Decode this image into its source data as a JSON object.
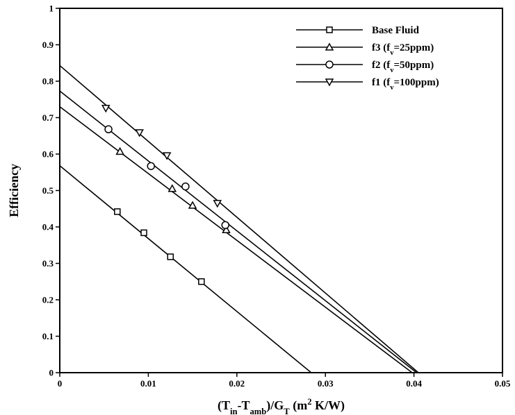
{
  "chart_data": {
    "type": "scatter",
    "title": "",
    "xlabel": {
      "parts": [
        {
          "t": "(T",
          "s": ""
        },
        {
          "t": "in",
          "s": "sub"
        },
        {
          "t": "-T",
          "s": ""
        },
        {
          "t": "amb",
          "s": "sub"
        },
        {
          "t": ")/G",
          "s": ""
        },
        {
          "t": "T",
          "s": "sub"
        },
        {
          "t": " (m",
          "s": ""
        },
        {
          "t": "2",
          "s": "sup"
        },
        {
          "t": " K/W)",
          "s": ""
        }
      ]
    },
    "ylabel": "Efficiency",
    "xlim": [
      0,
      0.05
    ],
    "ylim": [
      0,
      1
    ],
    "x_ticks": [
      0,
      0.01,
      0.02,
      0.03,
      0.04,
      0.05
    ],
    "x_tick_labels": [
      "0",
      "0.01",
      "0.02",
      "0.03",
      "0.04",
      "0.05"
    ],
    "y_ticks": [
      0,
      0.1,
      0.2,
      0.3,
      0.4,
      0.5,
      0.6,
      0.7,
      0.8,
      0.9,
      1
    ],
    "y_tick_labels": [
      "0",
      "0.1",
      "0.2",
      "0.3",
      "0.4",
      "0.5",
      "0.6",
      "0.7",
      "0.8",
      "0.9",
      "1"
    ],
    "grid": false,
    "legend_position": "top-right",
    "series": [
      {
        "name": "Base Fluid",
        "legend": [
          {
            "t": "Base Fluid",
            "s": ""
          }
        ],
        "marker": "square",
        "points": [
          [
            0.0065,
            0.442
          ],
          [
            0.0095,
            0.384
          ],
          [
            0.0125,
            0.318
          ],
          [
            0.016,
            0.25
          ]
        ],
        "fit_line": [
          [
            0,
            0.568
          ],
          [
            0.0284,
            0
          ]
        ]
      },
      {
        "name": "f3 (fv=25ppm)",
        "legend": [
          {
            "t": "f3 (f",
            "s": ""
          },
          {
            "t": "v",
            "s": "sub"
          },
          {
            "t": "=25ppm)",
            "s": ""
          }
        ],
        "marker": "triangle-up",
        "points": [
          [
            0.0068,
            0.607
          ],
          [
            0.0127,
            0.505
          ],
          [
            0.015,
            0.459
          ],
          [
            0.0188,
            0.392
          ]
        ],
        "fit_line": [
          [
            0,
            0.73
          ],
          [
            0.0398,
            0
          ]
        ]
      },
      {
        "name": "f2 (fv=50ppm)",
        "legend": [
          {
            "t": "f2 (f",
            "s": ""
          },
          {
            "t": "v",
            "s": "sub"
          },
          {
            "t": "=50ppm)",
            "s": ""
          }
        ],
        "marker": "circle",
        "points": [
          [
            0.0055,
            0.668
          ],
          [
            0.0103,
            0.567
          ],
          [
            0.0142,
            0.511
          ],
          [
            0.0187,
            0.405
          ]
        ],
        "fit_line": [
          [
            0,
            0.773
          ],
          [
            0.0403,
            0
          ]
        ]
      },
      {
        "name": "f1 (fv=100ppm)",
        "legend": [
          {
            "t": "f1 (f",
            "s": ""
          },
          {
            "t": "v",
            "s": "sub"
          },
          {
            "t": "=100ppm)",
            "s": ""
          }
        ],
        "marker": "triangle-down",
        "points": [
          [
            0.0052,
            0.726
          ],
          [
            0.009,
            0.659
          ],
          [
            0.0121,
            0.596
          ],
          [
            0.0178,
            0.465
          ]
        ],
        "fit_line": [
          [
            0,
            0.843
          ],
          [
            0.0405,
            0
          ]
        ]
      }
    ]
  }
}
